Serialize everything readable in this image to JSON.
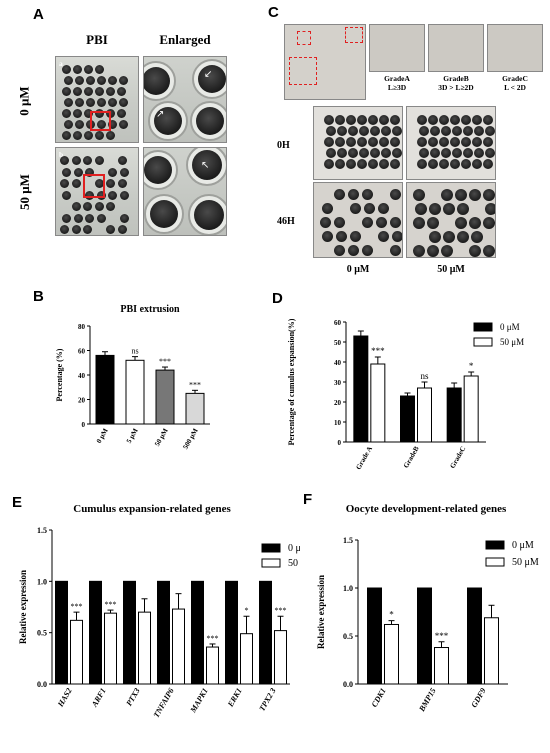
{
  "panels": {
    "A": {
      "letter": "A",
      "col_headers": [
        "PBI",
        "Enlarged"
      ],
      "sub_a": "a",
      "sub_b": "b",
      "row_labels": [
        "0 μM",
        "50 μM"
      ]
    },
    "C": {
      "letter": "C",
      "grades": [
        {
          "name": "GradeA",
          "rule": "L≥3D"
        },
        {
          "name": "GradeB",
          "rule": "3D > L≥2D"
        },
        {
          "name": "GradeC",
          "rule": "L < 2D"
        }
      ],
      "row_labels": [
        "0H",
        "46H"
      ],
      "col_labels": [
        "0 μM",
        "50 μM"
      ]
    },
    "B": {
      "letter": "B"
    },
    "D": {
      "letter": "D"
    },
    "E": {
      "letter": "E"
    },
    "F": {
      "letter": "F"
    }
  },
  "chart_data": [
    {
      "id": "B",
      "type": "bar",
      "title": "PBI extrusion",
      "ylabel": "Percentage (%)",
      "xlabel": "",
      "ylim": [
        0,
        80
      ],
      "yticks": [
        0,
        20,
        40,
        60,
        80
      ],
      "categories": [
        "0 μM",
        "5 μM",
        "50 μM",
        "500 μM"
      ],
      "values": [
        56,
        52,
        44,
        25
      ],
      "errors": [
        3,
        3,
        2.5,
        2.5
      ],
      "significance": [
        "",
        "ns",
        "***",
        "***"
      ],
      "colors": [
        "#000000",
        "#ffffff",
        "#777777",
        "#d8d8d8"
      ]
    },
    {
      "id": "D",
      "type": "bar",
      "title": "",
      "ylabel": "Percentage of cumulus expansion(%)",
      "xlabel": "",
      "ylim": [
        0,
        60
      ],
      "yticks": [
        0,
        10,
        20,
        30,
        40,
        50,
        60
      ],
      "categories": [
        "Grade A",
        "GradeB",
        "GradeC"
      ],
      "series": [
        {
          "name": "0 μM",
          "values": [
            53,
            23,
            27
          ],
          "errors": [
            2.5,
            1.5,
            2.5
          ],
          "color": "#000000"
        },
        {
          "name": "50 μM",
          "values": [
            39,
            27,
            33
          ],
          "errors": [
            3.5,
            3,
            2
          ],
          "color": "#ffffff"
        }
      ],
      "significance": [
        "***",
        "ns",
        "*"
      ]
    },
    {
      "id": "E",
      "type": "bar",
      "title": "Cumulus expansion-related genes",
      "ylabel": "Relative  expression",
      "xlabel": "",
      "ylim": [
        0,
        1.5
      ],
      "yticks": [
        0,
        0.5,
        1.0,
        1.5
      ],
      "categories": [
        "HAS2",
        "ARF1",
        "PTX3",
        "TNFAIP6",
        "MAPK1",
        "ERK1",
        "TPX2 3"
      ],
      "series": [
        {
          "name": "0 μM",
          "values": [
            1,
            1,
            1,
            1,
            1,
            1,
            1
          ],
          "errors": [
            0,
            0,
            0,
            0,
            0,
            0,
            0
          ],
          "color": "#000000"
        },
        {
          "name": "50 μM",
          "values": [
            0.62,
            0.69,
            0.7,
            0.73,
            0.36,
            0.49,
            0.52
          ],
          "errors": [
            0.08,
            0.03,
            0.13,
            0.15,
            0.03,
            0.17,
            0.14
          ],
          "color": "#ffffff"
        }
      ],
      "significance": [
        "***",
        "***",
        "",
        "",
        "***",
        "*",
        "***"
      ]
    },
    {
      "id": "F",
      "type": "bar",
      "title": "Oocyte development-related genes",
      "ylabel": "Relative expression",
      "xlabel": "",
      "ylim": [
        0,
        1.5
      ],
      "yticks": [
        0,
        0.5,
        1.0,
        1.5
      ],
      "categories": [
        "CDK1",
        "BMP15",
        "GDF9"
      ],
      "series": [
        {
          "name": "0 μM",
          "values": [
            1,
            1,
            1
          ],
          "errors": [
            0,
            0,
            0
          ],
          "color": "#000000"
        },
        {
          "name": "50 μM",
          "values": [
            0.62,
            0.38,
            0.69
          ],
          "errors": [
            0.04,
            0.06,
            0.13
          ],
          "color": "#ffffff"
        }
      ],
      "significance": [
        "*",
        "***",
        ""
      ]
    }
  ]
}
